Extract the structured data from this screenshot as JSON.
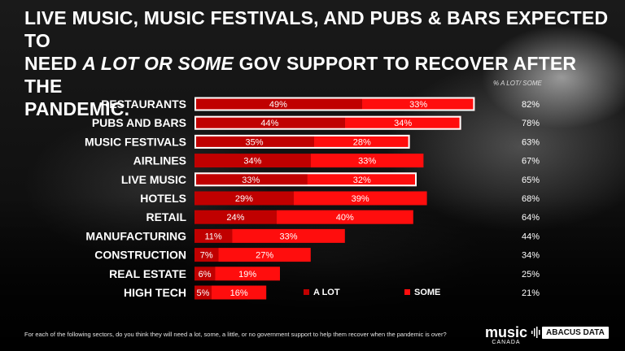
{
  "title": {
    "line1": "LIVE MUSIC, MUSIC FESTIVALS, AND PUBS & BARS EXPECTED TO",
    "line2_pre": "NEED ",
    "line2_em": "A LOT OR SOME",
    "line2_post": " GOV SUPPORT TO RECOVER AFTER THE",
    "line3": "PANDEMIC."
  },
  "column_header": "% A LOT/ SOME",
  "chart_data": {
    "type": "bar",
    "orientation": "horizontal",
    "stacked": true,
    "categories": [
      "RESTAURANTS",
      "PUBS AND BARS",
      "MUSIC FESTIVALS",
      "AIRLINES",
      "LIVE MUSIC",
      "HOTELS",
      "RETAIL",
      "MANUFACTURING",
      "CONSTRUCTION",
      "REAL ESTATE",
      "HIGH TECH"
    ],
    "series": [
      {
        "name": "A LOT",
        "values": [
          49,
          44,
          35,
          34,
          33,
          29,
          24,
          11,
          7,
          6,
          5
        ]
      },
      {
        "name": "SOME",
        "values": [
          33,
          34,
          28,
          33,
          32,
          39,
          40,
          33,
          27,
          19,
          16
        ]
      }
    ],
    "totals": [
      82,
      78,
      63,
      67,
      65,
      68,
      64,
      44,
      34,
      25,
      21
    ],
    "totals_labels": [
      "82%",
      "78%",
      "63%",
      "67%",
      "65%",
      "68%",
      "64%",
      "44%",
      "34%",
      "25%",
      "21%"
    ],
    "value_labels": {
      "a_lot": [
        "49%",
        "44%",
        "35%",
        "34%",
        "33%",
        "29%",
        "24%",
        "11%",
        "7%",
        "6%",
        "5%"
      ],
      "some": [
        "33%",
        "34%",
        "28%",
        "33%",
        "32%",
        "39%",
        "40%",
        "33%",
        "27%",
        "19%",
        "16%"
      ]
    },
    "highlighted": [
      "RESTAURANTS",
      "PUBS AND BARS",
      "MUSIC FESTIVALS",
      "LIVE MUSIC"
    ],
    "legend_position": "bottom-right",
    "xlim": [
      0,
      100
    ],
    "grid": false
  },
  "colors": {
    "a_lot": "#c00000",
    "some": "#ff0d0d",
    "highlight_border": "#ffffff"
  },
  "footnote": "For each of the following sectors, do you think they will need a lot, some, a little, or no government support to help them recover when the pandemic is over?",
  "logos": {
    "music_word": "music",
    "music_sub": "CANADA",
    "abacus": "ABACUS DATA"
  }
}
